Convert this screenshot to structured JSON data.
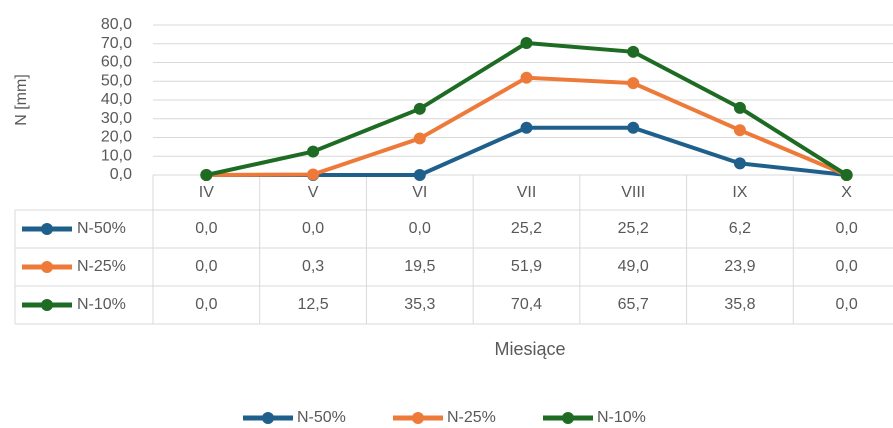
{
  "chart_data": {
    "type": "line",
    "y_label": "N [mm]",
    "x_label": "Miesiące",
    "categories": [
      "IV",
      "V",
      "VI",
      "VII",
      "VIII",
      "IX",
      "X"
    ],
    "series": [
      {
        "name": "N-50%",
        "color": "#1f5f8b",
        "values": [
          0,
          0,
          0,
          25.2,
          25.2,
          6.2,
          0
        ],
        "value_labels": [
          "0,0",
          "0,0",
          "0,0",
          "25,2",
          "25,2",
          "6,2",
          "0,0"
        ]
      },
      {
        "name": "N-25%",
        "color": "#ee7a3a",
        "values": [
          0,
          0.3,
          19.5,
          51.9,
          49.0,
          23.9,
          0
        ],
        "value_labels": [
          "0,0",
          "0,3",
          "19,5",
          "51,9",
          "49,0",
          "23,9",
          "0,0"
        ]
      },
      {
        "name": "N-10%",
        "color": "#1e6b24",
        "values": [
          0,
          12.5,
          35.3,
          70.4,
          65.7,
          35.8,
          0
        ],
        "value_labels": [
          "0,0",
          "12,5",
          "35,3",
          "70,4",
          "65,7",
          "35,8",
          "0,0"
        ]
      }
    ],
    "ylim": [
      0,
      80
    ],
    "yticks": [
      {
        "value": 0,
        "label": "0,0"
      },
      {
        "value": 10,
        "label": "10,0"
      },
      {
        "value": 20,
        "label": "20,0"
      },
      {
        "value": 30,
        "label": "30,0"
      },
      {
        "value": 40,
        "label": "40,0"
      },
      {
        "value": 50,
        "label": "50,0"
      },
      {
        "value": 60,
        "label": "60,0"
      },
      {
        "value": 70,
        "label": "70,0"
      },
      {
        "value": 80,
        "label": "80,0"
      }
    ],
    "grid": true,
    "legend": "bottom"
  }
}
